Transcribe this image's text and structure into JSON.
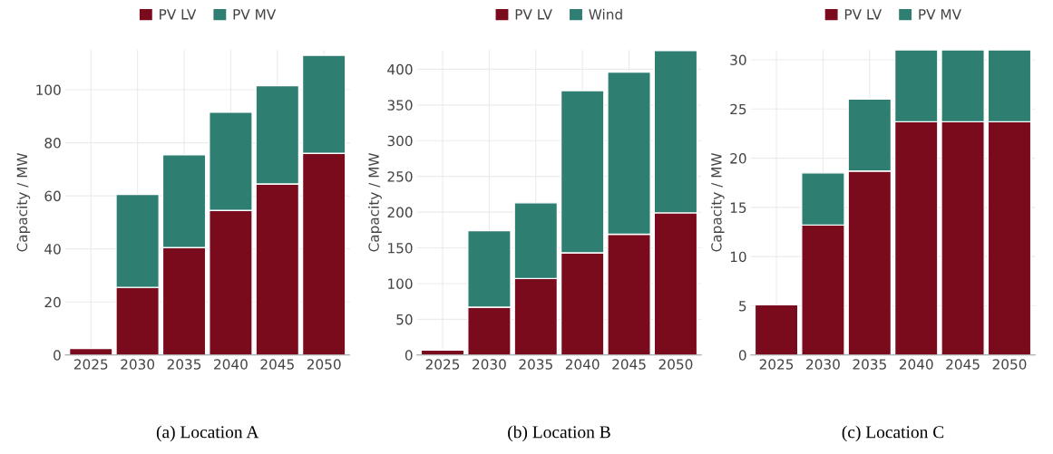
{
  "chart_data": [
    {
      "type": "bar",
      "title": "(a) Location A",
      "ylabel": "Capacity / MW",
      "categories": [
        "2025",
        "2030",
        "2035",
        "2040",
        "2045",
        "2050"
      ],
      "stacked": true,
      "legend": "top",
      "grid": true,
      "ylim": [
        0,
        115
      ],
      "yticks": [
        0,
        20,
        40,
        60,
        80,
        100
      ],
      "series": [
        {
          "name": "PV LV",
          "color": "#7a0b1c",
          "values": [
            2.5,
            25.5,
            40.5,
            54.5,
            64.5,
            76
          ]
        },
        {
          "name": "PV MV",
          "color": "#2e7e72",
          "values": [
            null,
            35,
            35,
            37,
            37,
            37
          ]
        }
      ]
    },
    {
      "type": "bar",
      "title": "(b) Location B",
      "ylabel": "Capacity / MW",
      "categories": [
        "2025",
        "2030",
        "2035",
        "2040",
        "2045",
        "2050"
      ],
      "stacked": true,
      "legend": "top",
      "grid": true,
      "ylim": [
        0,
        427
      ],
      "yticks": [
        0,
        50,
        100,
        150,
        200,
        250,
        300,
        350,
        400
      ],
      "series": [
        {
          "name": "PV LV",
          "color": "#7a0b1c",
          "values": [
            7,
            67,
            107,
            143,
            169,
            199
          ]
        },
        {
          "name": "Wind",
          "color": "#2e7e72",
          "values": [
            null,
            107,
            106,
            227,
            227,
            227
          ]
        }
      ]
    },
    {
      "type": "bar",
      "title": "(c) Location C",
      "ylabel": "Capacity / MW",
      "categories": [
        "2025",
        "2030",
        "2035",
        "2040",
        "2045",
        "2050"
      ],
      "stacked": true,
      "legend": "top",
      "grid": true,
      "ylim": [
        0,
        31
      ],
      "yticks": [
        0,
        5,
        10,
        15,
        20,
        25,
        30
      ],
      "series": [
        {
          "name": "PV LV",
          "color": "#7a0b1c",
          "values": [
            5.1,
            13.2,
            18.7,
            23.7,
            23.7,
            23.7
          ]
        },
        {
          "name": "PV MV",
          "color": "#2e7e72",
          "values": [
            null,
            5.3,
            7.3,
            7.3,
            7.3,
            7.3
          ]
        }
      ]
    }
  ]
}
